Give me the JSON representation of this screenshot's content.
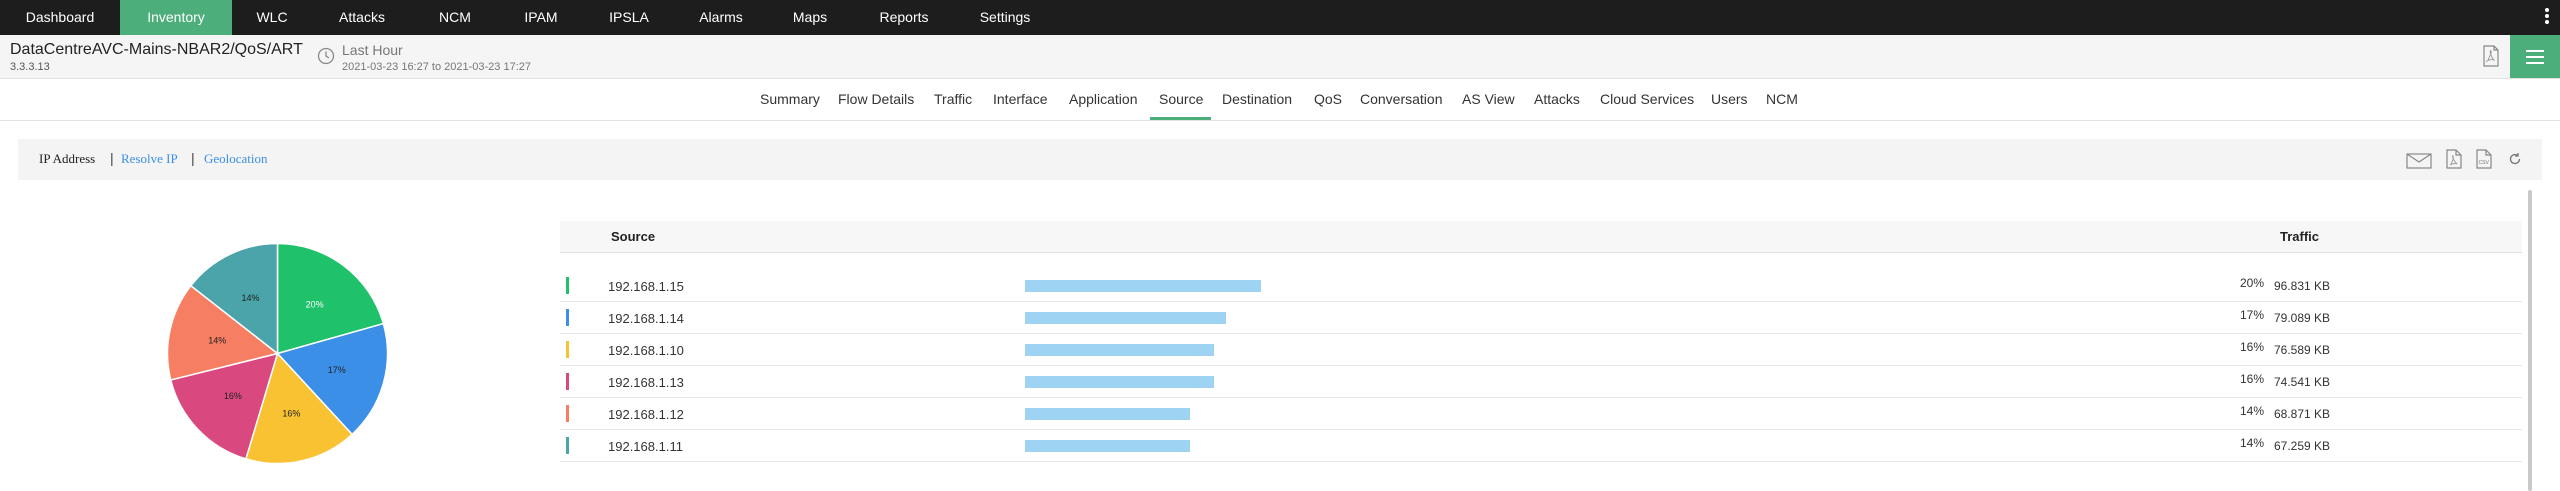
{
  "nav": {
    "items": [
      "Dashboard",
      "Inventory",
      "WLC",
      "Attacks",
      "NCM",
      "IPAM",
      "IPSLA",
      "Alarms",
      "Maps",
      "Reports",
      "Settings"
    ],
    "active": "Inventory"
  },
  "device": {
    "title": "DataCentreAVC-Mains-NBAR2/QoS/ART",
    "ip": "3.3.3.13",
    "period": "Last Hour",
    "range": "2021-03-23 16:27 to 2021-03-23 17:27"
  },
  "tabs": [
    "Summary",
    "Flow Details",
    "Traffic",
    "Interface",
    "Application",
    "Source",
    "Destination",
    "QoS",
    "Conversation",
    "AS View",
    "Attacks",
    "Cloud Services",
    "Users",
    "NCM"
  ],
  "active_tab": "Source",
  "filters": {
    "ip_address": "IP Address",
    "resolve_ip": "Resolve IP",
    "geolocation": "Geolocation"
  },
  "table": {
    "col_source": "Source",
    "col_traffic": "Traffic",
    "rows": [
      {
        "ip": "192.168.1.15",
        "pct": "20%",
        "size": "96.831 KB",
        "share": 0.2,
        "color": "#1fc16b"
      },
      {
        "ip": "192.168.1.14",
        "pct": "17%",
        "size": "79.089 KB",
        "share": 0.17,
        "color": "#3b8fe6"
      },
      {
        "ip": "192.168.1.10",
        "pct": "16%",
        "size": "76.589 KB",
        "share": 0.16,
        "color": "#f9c232"
      },
      {
        "ip": "192.168.1.13",
        "pct": "16%",
        "size": "74.541 KB",
        "share": 0.16,
        "color": "#d9487e"
      },
      {
        "ip": "192.168.1.12",
        "pct": "14%",
        "size": "68.871 KB",
        "share": 0.14,
        "color": "#f67f63"
      },
      {
        "ip": "192.168.1.11",
        "pct": "14%",
        "size": "67.259 KB",
        "share": 0.14,
        "color": "#4aa4a9"
      }
    ]
  },
  "pie_labels": [
    "20%",
    "17%",
    "16%",
    "16%",
    "14%",
    "14%"
  ],
  "icons": {
    "clock": "clock-icon",
    "pdf": "pdf-icon",
    "menu": "hamburger-menu-icon",
    "email": "email-icon",
    "csv": "csv-icon",
    "refresh": "refresh-icon"
  }
}
